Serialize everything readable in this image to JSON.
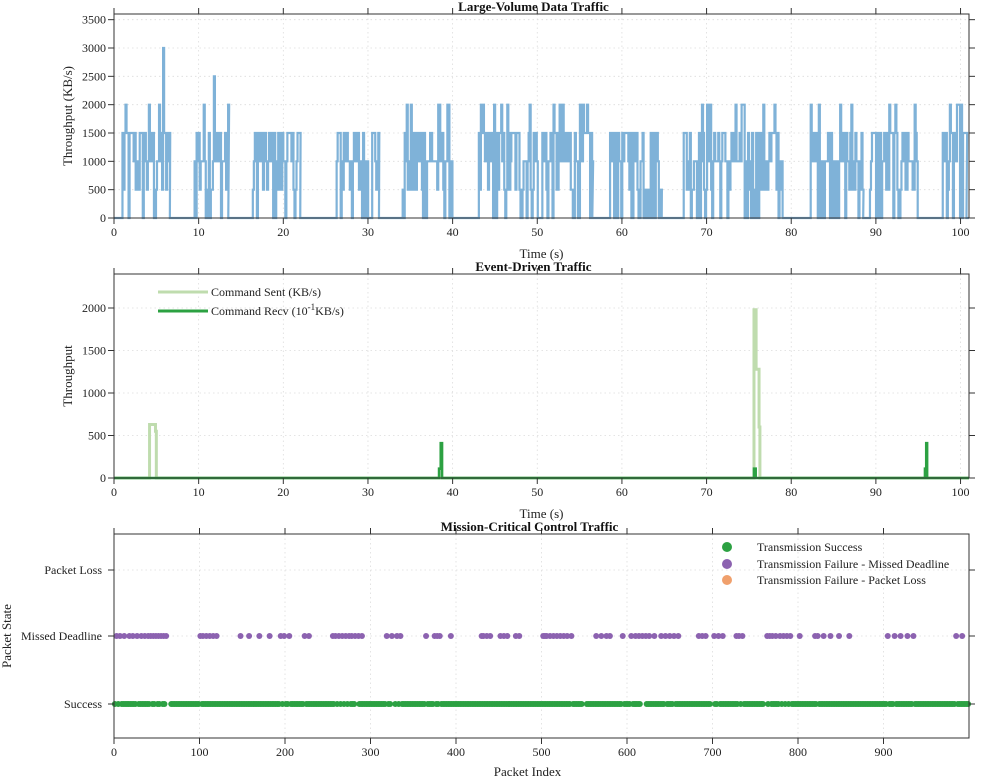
{
  "chart_data": [
    {
      "type": "line",
      "title": "Large-Volume Data Traffic",
      "xlabel": "Time (s)",
      "ylabel": "Throughput (KB/s)",
      "xlim": [
        0,
        101
      ],
      "ylim": [
        0,
        3600
      ],
      "xticks": [
        0,
        10,
        20,
        30,
        40,
        50,
        60,
        70,
        80,
        90,
        100
      ],
      "yticks": [
        0,
        500,
        1000,
        1500,
        2000,
        2500,
        3000,
        3500
      ],
      "grid": true,
      "color": "#7fb2d8",
      "bursts": [
        {
          "start": 1.0,
          "end": 6.6,
          "max": 2000
        },
        {
          "start": 9.4,
          "end": 13.5,
          "max": 2000
        },
        {
          "start": 16.4,
          "end": 22.0,
          "max": 1500
        },
        {
          "start": 26.3,
          "end": 31.3,
          "max": 1500
        },
        {
          "start": 34.1,
          "end": 40.0,
          "max": 2000
        },
        {
          "start": 43.1,
          "end": 50.1,
          "max": 2000
        },
        {
          "start": 50.6,
          "end": 56.5,
          "max": 2000
        },
        {
          "start": 58.6,
          "end": 64.7,
          "max": 1500
        },
        {
          "start": 67.3,
          "end": 74.7,
          "max": 2000
        },
        {
          "start": 74.9,
          "end": 79.1,
          "max": 2000
        },
        {
          "start": 82.3,
          "end": 88.5,
          "max": 2000
        },
        {
          "start": 89.3,
          "end": 95.0,
          "max": 2000
        },
        {
          "start": 97.9,
          "end": 100.7,
          "max": 2000
        }
      ],
      "peaks": [
        {
          "x": 5.8,
          "y": 3000
        },
        {
          "x": 11.8,
          "y": 2500
        }
      ]
    },
    {
      "type": "line",
      "title": "Event-Driven Traffic",
      "xlabel": "Time (s)",
      "ylabel": "Throughput",
      "xlim": [
        0,
        101
      ],
      "ylim": [
        0,
        2400
      ],
      "xticks": [
        0,
        10,
        20,
        30,
        40,
        50,
        60,
        70,
        80,
        90,
        100
      ],
      "yticks": [
        0,
        500,
        1000,
        1500,
        2000
      ],
      "grid": true,
      "legend": "top-left",
      "series": [
        {
          "name": "Command Sent (KB/s)",
          "color": "#bfdcae",
          "points": [
            [
              0,
              0
            ],
            [
              4.2,
              0
            ],
            [
              4.2,
              630
            ],
            [
              4.9,
              630
            ],
            [
              4.9,
              550
            ],
            [
              5.0,
              550
            ],
            [
              5.0,
              0
            ],
            [
              75.6,
              0
            ],
            [
              75.6,
              1980
            ],
            [
              75.85,
              1980
            ],
            [
              75.85,
              1280
            ],
            [
              76.2,
              1280
            ],
            [
              76.2,
              600
            ],
            [
              76.3,
              600
            ],
            [
              76.3,
              0
            ],
            [
              101,
              0
            ]
          ]
        },
        {
          "name": "Command Recv (10",
          "name_exp": "-1",
          "name_after": "KB/s)",
          "color": "#2ca142",
          "points": [
            [
              0,
              0
            ],
            [
              38.4,
              0
            ],
            [
              38.4,
              110
            ],
            [
              38.6,
              110
            ],
            [
              38.6,
              410
            ],
            [
              38.75,
              410
            ],
            [
              38.75,
              0
            ],
            [
              75.6,
              0
            ],
            [
              75.6,
              110
            ],
            [
              75.8,
              110
            ],
            [
              75.8,
              0
            ],
            [
              95.8,
              0
            ],
            [
              95.8,
              110
            ],
            [
              95.95,
              110
            ],
            [
              95.95,
              410
            ],
            [
              96.05,
              410
            ],
            [
              96.05,
              0
            ],
            [
              101,
              0
            ]
          ]
        }
      ]
    },
    {
      "type": "scatter",
      "title": "Mission-Critical Control Traffic",
      "xlabel": "Packet Index",
      "ylabel": "Packet State",
      "xlim": [
        0,
        1000
      ],
      "xticks": [
        0,
        100,
        200,
        300,
        400,
        500,
        600,
        700,
        800,
        900
      ],
      "categories": [
        "Success",
        "Missed Deadline",
        "Packet Loss"
      ],
      "grid": true,
      "legend": "top-right",
      "series": [
        {
          "name": "Transmission Success",
          "color": "#2ca142",
          "state": "Success"
        },
        {
          "name": "Transmission Failure - Missed Deadline",
          "color": "#8c62b0",
          "state": "Missed Deadline",
          "x": [
            3,
            7,
            12,
            18,
            22,
            27,
            32,
            36,
            40,
            43,
            46,
            49,
            52,
            55,
            58,
            61,
            101,
            104,
            108,
            112,
            116,
            120,
            148,
            158,
            170,
            182,
            195,
            199,
            205,
            223,
            228,
            256,
            259,
            263,
            267,
            271,
            275,
            278,
            282,
            286,
            290,
            319,
            325,
            331,
            335,
            365,
            375,
            378,
            381,
            394,
            430,
            432,
            436,
            440,
            452,
            456,
            460,
            470,
            474,
            502,
            504,
            506,
            510,
            514,
            518,
            522,
            526,
            530,
            535,
            564,
            570,
            576,
            580,
            595,
            605,
            610,
            614,
            618,
            622,
            626,
            632,
            640,
            645,
            650,
            655,
            660,
            684,
            688,
            692,
            702,
            707,
            712,
            728,
            731,
            735,
            764,
            767,
            770,
            774,
            779,
            783,
            787,
            791,
            802,
            820,
            823,
            830,
            838,
            848,
            860,
            905,
            913,
            920,
            928,
            935,
            985,
            992
          ]
        },
        {
          "name": "Transmission Failure - Packet Loss",
          "color": "#f0a06c",
          "state": "Packet Loss",
          "x": []
        }
      ],
      "success_gaps": [
        [
          63,
          66
        ],
        [
          282,
          286
        ],
        [
          325,
          328
        ],
        [
          549,
          552
        ],
        [
          617,
          621
        ],
        [
          699,
          702
        ],
        [
          760,
          763
        ]
      ]
    }
  ]
}
